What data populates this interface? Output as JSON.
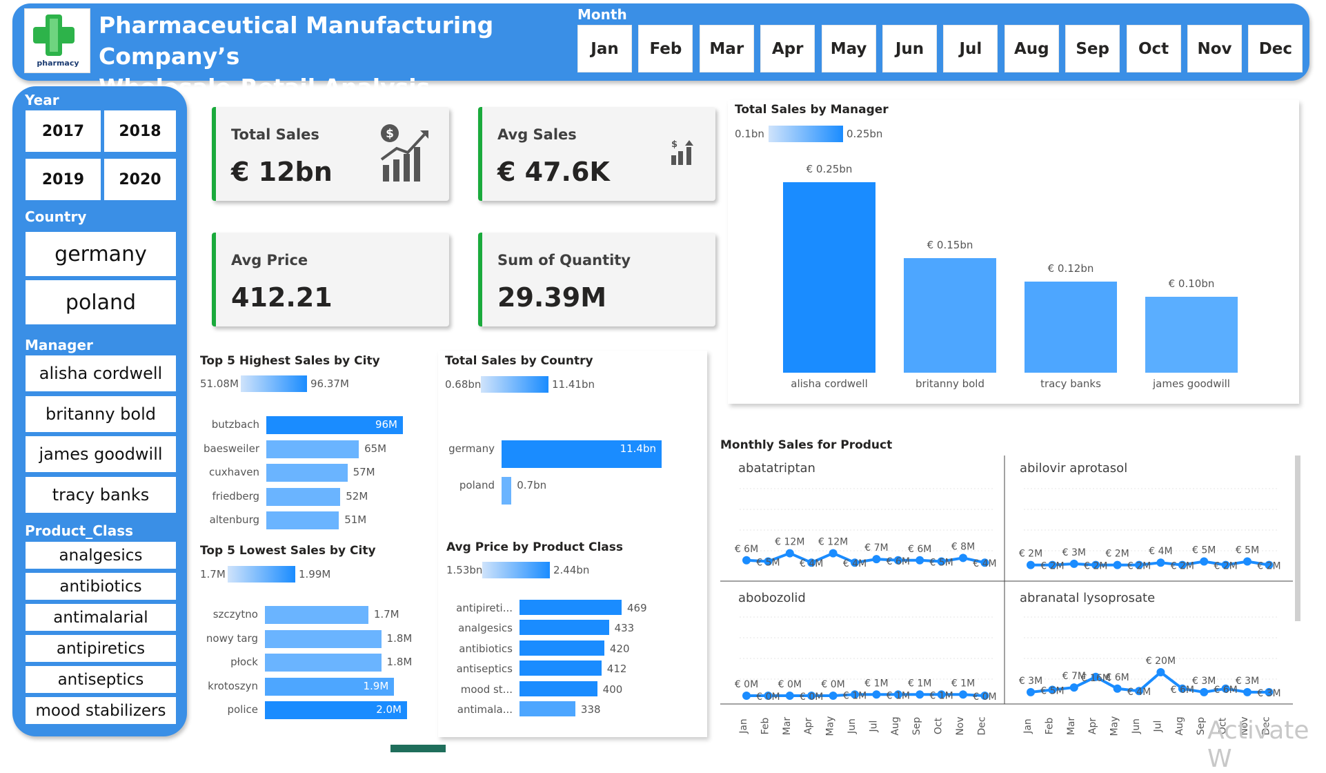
{
  "header": {
    "title_line1": "Pharmaceutical Manufacturing Company’s",
    "title_line2": "Wholesale-Retail Analysis",
    "logo_text": "pharmacy",
    "month_label": "Month",
    "months": [
      "Jan",
      "Feb",
      "Mar",
      "Apr",
      "May",
      "Jun",
      "Jul",
      "Aug",
      "Sep",
      "Oct",
      "Nov",
      "Dec"
    ]
  },
  "slicers": {
    "year_label": "Year",
    "years": [
      "2017",
      "2018",
      "2019",
      "2020"
    ],
    "country_label": "Country",
    "countries": [
      "germany",
      "poland"
    ],
    "manager_label": "Manager",
    "managers": [
      "alisha cordwell",
      "britanny bold",
      "james goodwill",
      "tracy banks"
    ],
    "product_class_label": "Product_Class",
    "product_classes": [
      "analgesics",
      "antibiotics",
      "antimalarial",
      "antipiretics",
      "antiseptics",
      "mood stabilizers"
    ]
  },
  "kpis": {
    "total_sales": {
      "title": "Total Sales",
      "value": "€ 12bn",
      "icon": "sales-growth-icon"
    },
    "avg_sales": {
      "title": "Avg Sales",
      "value": "€ 47.6K",
      "icon": "dollar-bars-icon"
    },
    "avg_price": {
      "title": "Avg Price",
      "value": "412.21"
    },
    "sum_quantity": {
      "title": "Sum of Quantity",
      "value": "29.39M"
    }
  },
  "colors": {
    "accent": "#3a8fe6",
    "bar": "#1a8cff",
    "bar_light": "#4da6ff",
    "kpi_border": "#1aaa3c"
  },
  "chart_data": [
    {
      "type": "bar",
      "title": "Total Sales by Manager",
      "legend_min": "0.1bn",
      "legend_max": "0.25bn",
      "categories": [
        "alisha cordwell",
        "britanny bold",
        "tracy banks",
        "james goodwill"
      ],
      "values": [
        0.25,
        0.15,
        0.12,
        0.1
      ],
      "labels": [
        "€ 0.25bn",
        "€ 0.15bn",
        "€ 0.12bn",
        "€ 0.10bn"
      ],
      "unit": "bn €"
    },
    {
      "type": "bar",
      "orientation": "horizontal",
      "title": "Top 5 Highest Sales by City",
      "legend_min": "51.08M",
      "legend_max": "96.37M",
      "categories": [
        "butzbach",
        "baesweiler",
        "cuxhaven",
        "friedberg",
        "altenburg"
      ],
      "values": [
        96,
        65,
        57,
        52,
        51
      ],
      "labels": [
        "96M",
        "65M",
        "57M",
        "52M",
        "51M"
      ]
    },
    {
      "type": "bar",
      "orientation": "horizontal",
      "title": "Top 5 Lowest Sales by City",
      "legend_min": "1.7M",
      "legend_max": "1.99M",
      "categories": [
        "szczytno",
        "nowy targ",
        "płock",
        "krotoszyn",
        "police"
      ],
      "values": [
        1.7,
        1.8,
        1.8,
        1.9,
        2.0
      ],
      "labels": [
        "1.7M",
        "1.8M",
        "1.8M",
        "1.9M",
        "2.0M"
      ]
    },
    {
      "type": "bar",
      "orientation": "horizontal",
      "title": "Total Sales by Country",
      "legend_min": "0.68bn",
      "legend_max": "11.41bn",
      "categories": [
        "germany",
        "poland"
      ],
      "values": [
        11.4,
        0.7
      ],
      "labels": [
        "11.4bn",
        "0.7bn"
      ]
    },
    {
      "type": "bar",
      "orientation": "horizontal",
      "title": "Avg Price by Product Class",
      "legend_min": "1.53bn",
      "legend_max": "2.44bn",
      "categories": [
        "antipireti...",
        "analgesics",
        "antibiotics",
        "antiseptics",
        "mood st...",
        "antimala..."
      ],
      "values": [
        469,
        433,
        420,
        412,
        400,
        338
      ],
      "labels": [
        "469",
        "433",
        "420",
        "412",
        "400",
        "338"
      ]
    },
    {
      "type": "line",
      "title": "Monthly Sales for Product",
      "x": [
        "Jan",
        "Feb",
        "Mar",
        "Apr",
        "May",
        "Jun",
        "Jul",
        "Aug",
        "Sep",
        "Oct",
        "Nov",
        "Dec"
      ],
      "panels": [
        {
          "name": "abatatriptan",
          "values": [
            6,
            5,
            12,
            4,
            12,
            4,
            7,
            6,
            6,
            5,
            8,
            4
          ],
          "labels": [
            "€ 6M",
            "€ 5M",
            "€ 12M",
            "€ 4M",
            "€ 12M",
            "€ 4M",
            "€ 7M",
            "€ 6M",
            "€ 6M",
            "€ 5M",
            "€ 8M",
            "€ 4M"
          ]
        },
        {
          "name": "abilovir aprotasol",
          "values": [
            2,
            2,
            3,
            2,
            2,
            2,
            4,
            2,
            5,
            2,
            5,
            2
          ],
          "labels": [
            "€ 2M",
            "€ 2M",
            "€ 3M",
            "€ 2M",
            "€ 2M",
            "€ 2M",
            "€ 4M",
            "€ 2M",
            "€ 5M",
            "€ 2M",
            "€ 5M",
            "€ 2M"
          ]
        },
        {
          "name": "abobozolid",
          "values": [
            0,
            0,
            0,
            0,
            0,
            1,
            1,
            1,
            1,
            1,
            1,
            0
          ],
          "labels": [
            "€ 0M",
            "€ 0M",
            "€ 0M",
            "€ 0M",
            "€ 0M",
            "€ 1M",
            "€ 1M",
            "€ 1M",
            "€ 1M",
            "€ 1M",
            "€ 1M",
            "€ 0M"
          ]
        },
        {
          "name": "abranatal lysoprosate",
          "values": [
            3,
            5,
            7,
            16,
            6,
            4,
            20,
            6,
            3,
            6,
            3,
            3
          ],
          "labels": [
            "€ 3M",
            "€ 5M",
            "€ 7M",
            "€ 16M",
            "€ 6M",
            "€ 4M",
            "€ 20M",
            "€ 6M",
            "€ 3M",
            "€ 6M",
            "€ 3M",
            "€ 3M"
          ]
        }
      ]
    }
  ],
  "watermark": "Activate W"
}
